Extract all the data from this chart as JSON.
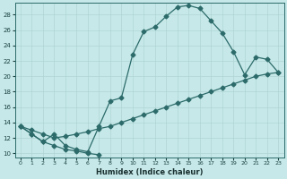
{
  "xlabel": "Humidex (Indice chaleur)",
  "background_color": "#c6e8e8",
  "line_color": "#2d6b6b",
  "grid_color": "#b0d4d4",
  "xlim": [
    -0.5,
    23.5
  ],
  "ylim": [
    9.5,
    29.5
  ],
  "xtick_labels": [
    "0",
    "1",
    "2",
    "3",
    "4",
    "5",
    "6",
    "7",
    "8",
    "9",
    "10",
    "11",
    "12",
    "13",
    "14",
    "15",
    "16",
    "17",
    "18",
    "19",
    "20",
    "21",
    "22",
    "23"
  ],
  "yticks": [
    10,
    12,
    14,
    16,
    18,
    20,
    22,
    24,
    26,
    28
  ],
  "curve_upper": {
    "x": [
      0,
      1,
      2,
      3,
      4,
      5,
      6,
      7,
      8,
      9,
      10,
      11,
      12,
      13,
      14,
      15,
      16,
      17,
      18,
      19,
      20,
      21,
      22,
      23
    ],
    "y": [
      13.5,
      12.5,
      11.5,
      12.5,
      11.0,
      10.5,
      10.2,
      13.5,
      16.8,
      17.2,
      22.8,
      25.8,
      26.4,
      27.8,
      29.0,
      29.2,
      28.8,
      27.2,
      25.6,
      23.2,
      20.2,
      22.5,
      22.2,
      20.5
    ]
  },
  "curve_lower": {
    "x": [
      0,
      1,
      2,
      3,
      4,
      5,
      6,
      7,
      8,
      9,
      10,
      11,
      12,
      13,
      14,
      15,
      16,
      17,
      18,
      19,
      20,
      21,
      22,
      23
    ],
    "y": [
      13.5,
      13.0,
      12.5,
      12.0,
      12.2,
      12.5,
      12.8,
      13.2,
      13.5,
      14.0,
      14.5,
      15.0,
      15.5,
      16.0,
      16.5,
      17.0,
      17.5,
      18.0,
      18.5,
      19.0,
      19.5,
      20.0,
      20.3,
      20.5
    ]
  },
  "curve_dip": {
    "x": [
      0,
      1,
      2,
      3,
      4,
      5,
      6,
      7
    ],
    "y": [
      13.5,
      12.5,
      11.5,
      11.0,
      10.5,
      10.3,
      10.0,
      9.8
    ]
  }
}
